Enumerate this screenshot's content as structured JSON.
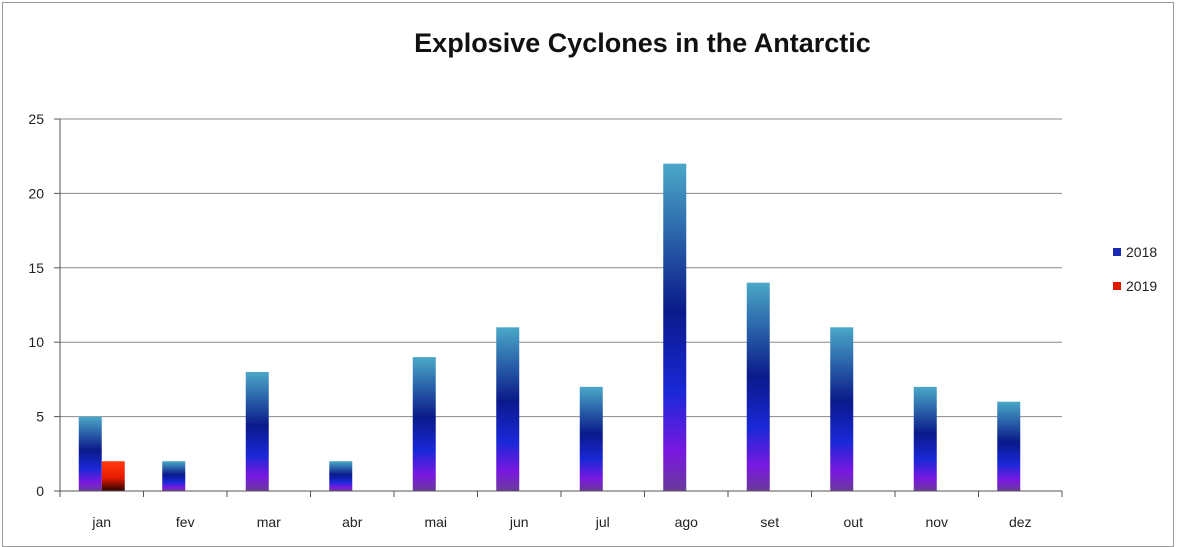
{
  "chart_data": {
    "type": "bar",
    "title": "Explosive Cyclones in the Antarctic",
    "xlabel": "",
    "ylabel": "",
    "categories": [
      "jan",
      "fev",
      "mar",
      "abr",
      "mai",
      "jun",
      "jul",
      "ago",
      "set",
      "out",
      "nov",
      "dez"
    ],
    "series": [
      {
        "name": "2018",
        "values": [
          5,
          2,
          8,
          2,
          9,
          11,
          7,
          22,
          14,
          11,
          7,
          6
        ]
      },
      {
        "name": "2019",
        "values": [
          2,
          null,
          null,
          null,
          null,
          null,
          null,
          null,
          null,
          null,
          null,
          null
        ]
      }
    ],
    "ylim": [
      0,
      25
    ],
    "yticks": [
      0,
      5,
      10,
      15,
      20,
      25
    ],
    "grid": true,
    "legend_position": "right"
  }
}
